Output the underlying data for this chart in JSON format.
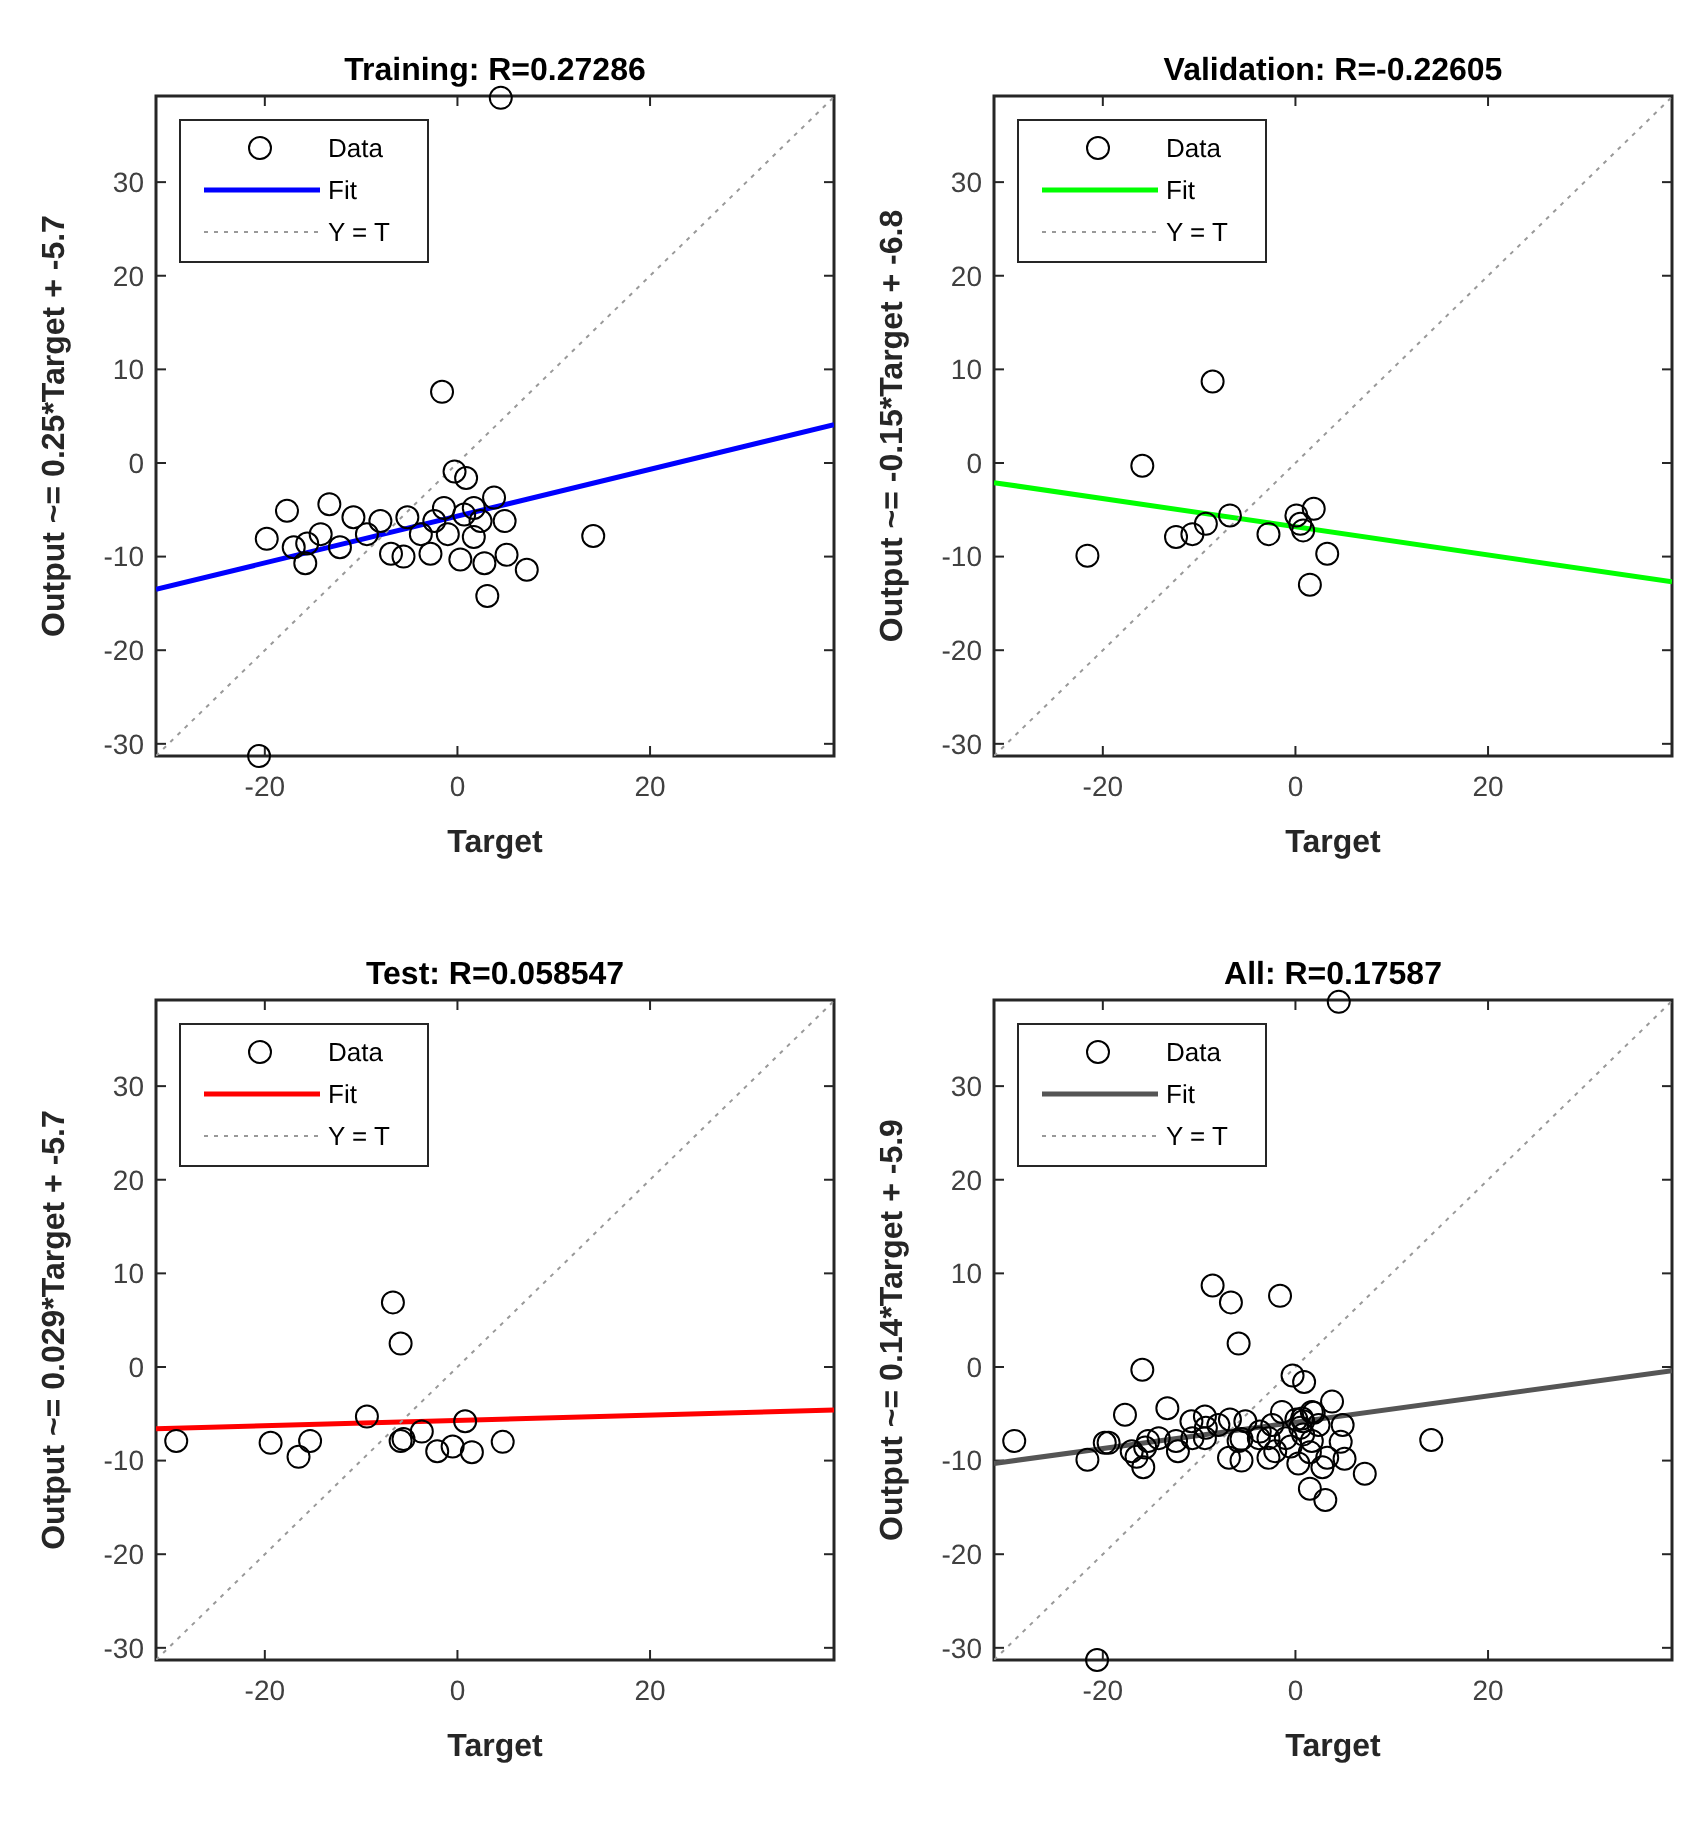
{
  "chart_data": [
    {
      "type": "scatter",
      "title": "Training: R=0.27286",
      "xlabel": "Target",
      "ylabel": "Output ~= 0.25*Target + -5.7",
      "xlim": [
        -31.3,
        39.1
      ],
      "ylim": [
        -31.3,
        39.2
      ],
      "xticks": [
        -20,
        0,
        20
      ],
      "yticks": [
        -30,
        -20,
        -10,
        0,
        10,
        20,
        30
      ],
      "legend": "top left",
      "series": [
        {
          "name": "Data",
          "marker": "circle",
          "color": "#000000",
          "x": [
            4.5,
            -1.6,
            14.1,
            -20.6,
            -17.7,
            -19.8,
            -13.3,
            -15.8,
            -15.6,
            -10.8,
            -8,
            -5.2,
            -6.9,
            -5.6,
            -2.8,
            -0.3,
            0.9,
            -1.4,
            1.7,
            3.8,
            4.9,
            5.1,
            7.2,
            3.1,
            2.8,
            0.3,
            1.7,
            -1,
            -3.8,
            -9.4,
            -12.2,
            -14.2,
            -17,
            2.4,
            0.7,
            -2.4
          ],
          "values": [
            39,
            7.6,
            -7.8,
            -31.3,
            -5.1,
            -8.1,
            -4.4,
            -10.7,
            -8.6,
            -5.8,
            -6.2,
            -5.8,
            -9.7,
            -10,
            -9.7,
            -0.9,
            -1.6,
            -4.8,
            -4.8,
            -3.7,
            -6.2,
            -9.8,
            -11.4,
            -14.2,
            -10.7,
            -10.3,
            -7.9,
            -7.6,
            -7.6,
            -7.6,
            -9,
            -7.6,
            -9,
            -6.2,
            -5.5,
            -6.2
          ]
        },
        {
          "name": "Fit",
          "type": "line",
          "color": "#0000ff",
          "x": [
            -31.3,
            39.1
          ],
          "values": [
            -13.5,
            4.1
          ]
        },
        {
          "name": "Y = T",
          "type": "line",
          "line_style": "dotted",
          "color": "#999999",
          "x": [
            -31.3,
            39.1
          ],
          "values": [
            -31.3,
            39.1
          ]
        }
      ]
    },
    {
      "type": "scatter",
      "title": "Validation: R=-0.22605",
      "xlabel": "Target",
      "ylabel": "Output ~= -0.15*Target + -6.8",
      "xlim": [
        -31.3,
        39.1
      ],
      "ylim": [
        -31.3,
        39.2
      ],
      "xticks": [
        -20,
        0,
        20
      ],
      "yticks": [
        -30,
        -20,
        -10,
        0,
        10,
        20,
        30
      ],
      "legend": "top left",
      "series": [
        {
          "name": "Data",
          "marker": "circle",
          "color": "#000000",
          "x": [
            -8.6,
            -15.9,
            -21.6,
            -12.4,
            -10.7,
            -9.3,
            -6.8,
            -2.8,
            0.1,
            1.9,
            0.8,
            1.5,
            3.3,
            0.5
          ],
          "values": [
            8.7,
            -0.3,
            -9.9,
            -7.9,
            -7.6,
            -6.5,
            -5.6,
            -7.6,
            -5.6,
            -4.9,
            -7.2,
            -13,
            -9.7,
            -6.5
          ]
        },
        {
          "name": "Fit",
          "type": "line",
          "color": "#00ff00",
          "x": [
            -31.3,
            39.1
          ],
          "values": [
            -2.1,
            -12.7
          ]
        },
        {
          "name": "Y = T",
          "type": "line",
          "line_style": "dotted",
          "color": "#999999",
          "x": [
            -31.3,
            39.1
          ],
          "values": [
            -31.3,
            39.1
          ]
        }
      ]
    },
    {
      "type": "scatter",
      "title": "Test: R=0.058547",
      "xlabel": "Target",
      "ylabel": "Output ~= 0.029*Target + -5.7",
      "xlim": [
        -31.3,
        39.1
      ],
      "ylim": [
        -31.3,
        39.2
      ],
      "xticks": [
        -20,
        0,
        20
      ],
      "yticks": [
        -30,
        -20,
        -10,
        0,
        10,
        20,
        30
      ],
      "legend": "top left",
      "series": [
        {
          "name": "Data",
          "marker": "circle",
          "color": "#000000",
          "x": [
            -6.7,
            -5.9,
            -9.4,
            -29.2,
            -19.4,
            -16.5,
            -15.3,
            -5.9,
            -3.7,
            -2.1,
            -0.5,
            0.8,
            1.5,
            4.7,
            -5.6
          ],
          "values": [
            6.9,
            2.5,
            -5.3,
            -7.9,
            -8.1,
            -9.6,
            -7.9,
            -7.9,
            -6.9,
            -9,
            -8.5,
            -5.8,
            -9.1,
            -8,
            -7.7
          ]
        },
        {
          "name": "Fit",
          "type": "line",
          "color": "#ff0000",
          "x": [
            -31.3,
            39.1
          ],
          "values": [
            -6.6,
            -4.6
          ]
        },
        {
          "name": "Y = T",
          "type": "line",
          "line_style": "dotted",
          "color": "#999999",
          "x": [
            -31.3,
            39.1
          ],
          "values": [
            -31.3,
            39.1
          ]
        }
      ]
    },
    {
      "type": "scatter",
      "title": "All: R=0.17587",
      "xlabel": "Target",
      "ylabel": "Output ~= 0.14*Target + -5.9",
      "xlim": [
        -31.3,
        39.1
      ],
      "ylim": [
        -31.3,
        39.2
      ],
      "xticks": [
        -20,
        0,
        20
      ],
      "yticks": [
        -30,
        -20,
        -10,
        0,
        10,
        20,
        30
      ],
      "legend": "top left",
      "series": [
        {
          "name": "Data",
          "marker": "circle",
          "color": "#000000",
          "x": [
            4.5,
            -1.6,
            14.1,
            -20.6,
            -17.7,
            -19.8,
            -13.3,
            -15.8,
            -15.6,
            -10.8,
            -8,
            -5.2,
            -6.9,
            -5.6,
            -2.8,
            -0.3,
            0.9,
            -1.4,
            1.7,
            3.8,
            4.9,
            5.1,
            7.2,
            3.1,
            2.8,
            0.3,
            1.7,
            -1,
            -3.8,
            -9.4,
            -12.2,
            -14.2,
            -17,
            2.4,
            0.7,
            -2.4,
            -8.6,
            -15.9,
            -21.6,
            -12.4,
            -10.7,
            -9.3,
            -6.8,
            -2.8,
            0.1,
            1.9,
            0.8,
            1.5,
            3.3,
            0.5,
            -6.7,
            -5.9,
            -9.4,
            -29.2,
            -19.4,
            -16.5,
            -15.3,
            -5.9,
            -3.7,
            -2.1,
            -0.5,
            0.8,
            1.5,
            4.7,
            -5.6
          ],
          "values": [
            39,
            7.6,
            -7.8,
            -31.3,
            -5.1,
            -8.1,
            -4.4,
            -10.7,
            -8.6,
            -5.8,
            -6.2,
            -5.8,
            -9.7,
            -10,
            -9.7,
            -0.9,
            -1.6,
            -4.8,
            -4.8,
            -3.7,
            -6.2,
            -9.8,
            -11.4,
            -14.2,
            -10.7,
            -10.3,
            -7.9,
            -7.6,
            -7.6,
            -7.6,
            -9,
            -7.6,
            -9,
            -6.2,
            -5.5,
            -6.2,
            8.7,
            -0.3,
            -9.9,
            -7.9,
            -7.6,
            -6.5,
            -5.6,
            -7.6,
            -5.6,
            -4.9,
            -7.2,
            -13,
            -9.7,
            -6.5,
            6.9,
            2.5,
            -5.3,
            -7.9,
            -8.1,
            -9.6,
            -7.9,
            -7.9,
            -6.9,
            -9,
            -8.5,
            -5.8,
            -9.1,
            -8,
            -7.7
          ]
        },
        {
          "name": "Fit",
          "type": "line",
          "color": "#555555",
          "x": [
            -31.3,
            39.1
          ],
          "values": [
            -10.3,
            -0.4
          ]
        },
        {
          "name": "Y = T",
          "type": "line",
          "line_style": "dotted",
          "color": "#999999",
          "x": [
            -31.3,
            39.1
          ],
          "values": [
            -31.3,
            39.1
          ]
        }
      ]
    }
  ]
}
